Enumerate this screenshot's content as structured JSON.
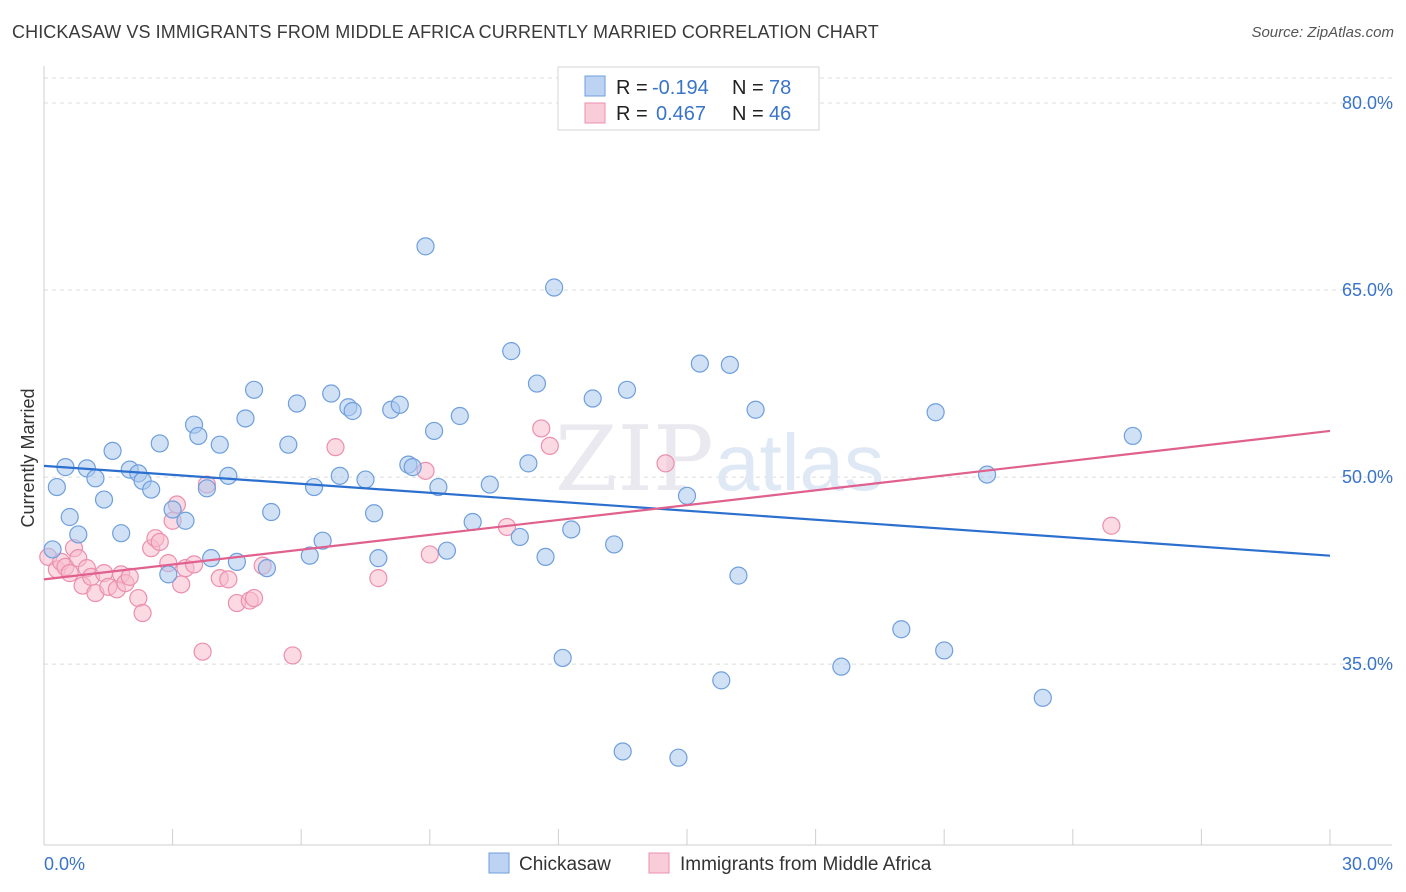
{
  "title": "CHICKASAW VS IMMIGRANTS FROM MIDDLE AFRICA CURRENTLY MARRIED CORRELATION CHART",
  "source": "Source: ZipAtlas.com",
  "watermark": {
    "zip": "ZIP",
    "atlas": "atlas"
  },
  "colors": {
    "blue_fill": "#aac8ee",
    "blue_stroke": "#6f9fdc",
    "blue_line": "#2b6fcf",
    "pink_fill": "#f7bccd",
    "pink_stroke": "#ec8fad",
    "pink_line": "#e0608e",
    "grid": "#dcdcdc",
    "axis_text": "#3a74c8"
  },
  "legend": {
    "r_label": "R =",
    "n_label": "N =",
    "items": [
      {
        "r": "-0.194",
        "n": "78"
      },
      {
        "r": "0.467",
        "n": "46"
      }
    ]
  },
  "chart_data": {
    "type": "scatter",
    "title": "CHICKASAW VS IMMIGRANTS FROM MIDDLE AFRICA CURRENTLY MARRIED CORRELATION CHART",
    "xlabel": "",
    "ylabel": "Currently Married",
    "xlim": [
      0,
      30
    ],
    "ylim": [
      20.5,
      82
    ],
    "x_tick_labels": [
      "0.0%",
      "30.0%"
    ],
    "y_ticks": [
      35,
      50,
      65,
      80
    ],
    "y_tick_labels": [
      "35.0%",
      "50.0%",
      "65.0%",
      "80.0%"
    ],
    "legend_position": "top-center",
    "series": [
      {
        "name": "Chickasaw",
        "r": -0.194,
        "n": 78,
        "trend": {
          "x": [
            0,
            30
          ],
          "y": [
            50.9,
            43.7
          ]
        },
        "points": [
          [
            0.2,
            44.2
          ],
          [
            0.3,
            49.2
          ],
          [
            0.5,
            50.8
          ],
          [
            0.6,
            46.8
          ],
          [
            0.8,
            45.4
          ],
          [
            1.0,
            50.7
          ],
          [
            1.2,
            49.9
          ],
          [
            1.4,
            48.2
          ],
          [
            1.6,
            52.1
          ],
          [
            1.8,
            45.5
          ],
          [
            2.0,
            50.6
          ],
          [
            2.2,
            50.3
          ],
          [
            2.3,
            49.7
          ],
          [
            2.5,
            49.0
          ],
          [
            2.7,
            52.7
          ],
          [
            2.9,
            42.2
          ],
          [
            3.0,
            47.4
          ],
          [
            3.3,
            46.5
          ],
          [
            3.5,
            54.2
          ],
          [
            3.6,
            53.3
          ],
          [
            3.8,
            49.1
          ],
          [
            3.9,
            43.5
          ],
          [
            4.1,
            52.6
          ],
          [
            4.3,
            50.1
          ],
          [
            4.5,
            43.2
          ],
          [
            4.7,
            54.7
          ],
          [
            4.9,
            57.0
          ],
          [
            5.2,
            42.7
          ],
          [
            5.3,
            47.2
          ],
          [
            5.7,
            52.6
          ],
          [
            5.9,
            55.9
          ],
          [
            6.2,
            43.7
          ],
          [
            6.3,
            49.2
          ],
          [
            6.5,
            44.9
          ],
          [
            6.7,
            56.7
          ],
          [
            6.9,
            50.1
          ],
          [
            7.1,
            55.6
          ],
          [
            7.2,
            55.3
          ],
          [
            7.5,
            49.8
          ],
          [
            7.7,
            47.1
          ],
          [
            7.8,
            43.5
          ],
          [
            8.1,
            55.4
          ],
          [
            8.3,
            55.8
          ],
          [
            8.5,
            51.0
          ],
          [
            8.6,
            50.8
          ],
          [
            8.9,
            68.5
          ],
          [
            9.1,
            53.7
          ],
          [
            9.2,
            49.2
          ],
          [
            9.4,
            44.1
          ],
          [
            9.7,
            54.9
          ],
          [
            10.0,
            46.4
          ],
          [
            10.4,
            49.4
          ],
          [
            10.9,
            60.1
          ],
          [
            11.1,
            45.2
          ],
          [
            11.3,
            51.1
          ],
          [
            11.5,
            57.5
          ],
          [
            11.7,
            43.6
          ],
          [
            11.9,
            65.2
          ],
          [
            12.1,
            35.5
          ],
          [
            12.3,
            45.8
          ],
          [
            12.8,
            56.3
          ],
          [
            13.3,
            44.6
          ],
          [
            13.5,
            28.0
          ],
          [
            13.6,
            57.0
          ],
          [
            14.8,
            27.5
          ],
          [
            15.0,
            48.5
          ],
          [
            15.3,
            59.1
          ],
          [
            15.8,
            33.7
          ],
          [
            16.0,
            59.0
          ],
          [
            16.2,
            42.1
          ],
          [
            16.6,
            55.4
          ],
          [
            18.6,
            34.8
          ],
          [
            20.0,
            37.8
          ],
          [
            20.8,
            55.2
          ],
          [
            21.0,
            36.1
          ],
          [
            22.0,
            50.2
          ],
          [
            23.3,
            32.3
          ],
          [
            25.4,
            53.3
          ]
        ]
      },
      {
        "name": "Immigrants from Middle Africa",
        "r": 0.467,
        "n": 46,
        "trend": {
          "x": [
            0,
            30
          ],
          "y": [
            41.8,
            53.7
          ]
        },
        "points": [
          [
            0.1,
            43.6
          ],
          [
            0.3,
            42.6
          ],
          [
            0.4,
            43.2
          ],
          [
            0.5,
            42.8
          ],
          [
            0.6,
            42.3
          ],
          [
            0.7,
            44.3
          ],
          [
            0.8,
            43.5
          ],
          [
            0.9,
            41.3
          ],
          [
            1.0,
            42.7
          ],
          [
            1.1,
            42.0
          ],
          [
            1.2,
            40.7
          ],
          [
            1.4,
            42.3
          ],
          [
            1.5,
            41.2
          ],
          [
            1.7,
            41.0
          ],
          [
            1.8,
            42.2
          ],
          [
            1.9,
            41.5
          ],
          [
            2.0,
            42.0
          ],
          [
            2.2,
            40.3
          ],
          [
            2.3,
            39.1
          ],
          [
            2.5,
            44.3
          ],
          [
            2.6,
            45.1
          ],
          [
            2.7,
            44.8
          ],
          [
            2.9,
            43.1
          ],
          [
            3.0,
            46.5
          ],
          [
            3.1,
            47.8
          ],
          [
            3.2,
            41.4
          ],
          [
            3.3,
            42.7
          ],
          [
            3.5,
            43.0
          ],
          [
            3.7,
            36.0
          ],
          [
            3.8,
            49.4
          ],
          [
            4.1,
            41.9
          ],
          [
            4.3,
            41.8
          ],
          [
            4.5,
            39.9
          ],
          [
            4.8,
            40.1
          ],
          [
            4.9,
            40.3
          ],
          [
            5.1,
            42.9
          ],
          [
            5.8,
            35.7
          ],
          [
            6.8,
            52.4
          ],
          [
            7.8,
            41.9
          ],
          [
            8.9,
            50.5
          ],
          [
            9.0,
            43.8
          ],
          [
            10.8,
            46.0
          ],
          [
            11.6,
            53.9
          ],
          [
            11.8,
            52.5
          ],
          [
            14.5,
            51.1
          ],
          [
            24.9,
            46.1
          ]
        ]
      }
    ]
  }
}
